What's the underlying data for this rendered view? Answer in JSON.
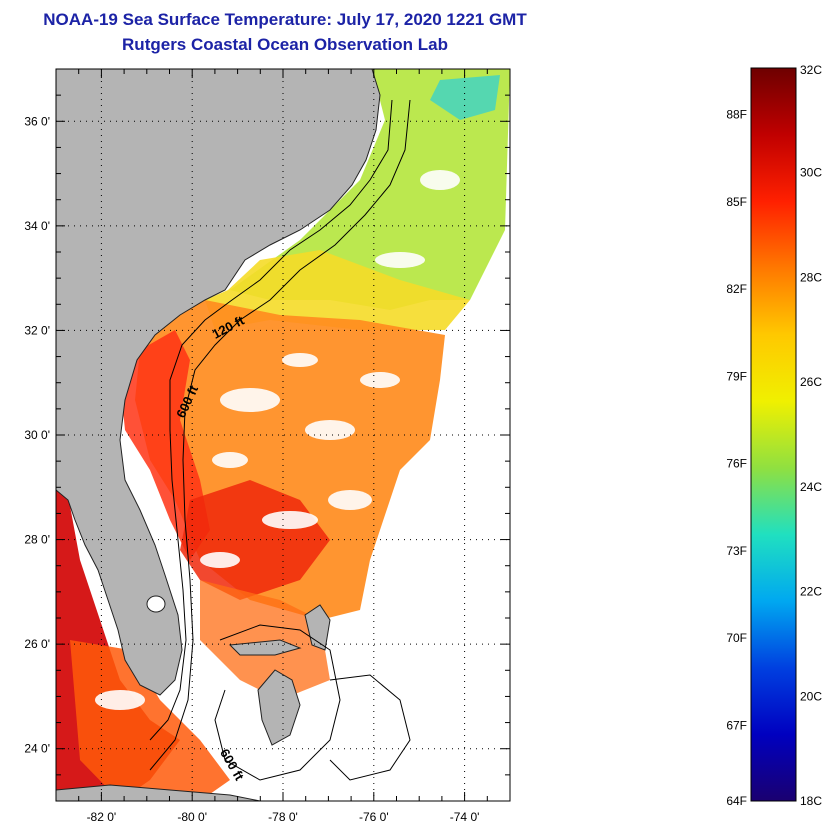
{
  "header": {
    "title": "NOAA-19 Sea Surface Temperature:  July 17, 2020 1221 GMT",
    "subtitle": "Rutgers Coastal Ocean Observation Lab"
  },
  "map": {
    "lat_range": [
      23.0,
      37.0
    ],
    "lon_range": [
      -83.0,
      -73.0
    ],
    "lat_ticks": [
      {
        "value": 24,
        "label": "24 0'"
      },
      {
        "value": 26,
        "label": "26 0'"
      },
      {
        "value": 28,
        "label": "28 0'"
      },
      {
        "value": 30,
        "label": "30 0'"
      },
      {
        "value": 32,
        "label": "32 0'"
      },
      {
        "value": 34,
        "label": "34 0'"
      },
      {
        "value": 36,
        "label": "36 0'"
      }
    ],
    "lon_ticks": [
      {
        "value": -82,
        "label": "-82 0'"
      },
      {
        "value": -80,
        "label": "-80 0'"
      },
      {
        "value": -78,
        "label": "-78 0'"
      },
      {
        "value": -76,
        "label": "-76 0'"
      },
      {
        "value": -74,
        "label": "-74 0'"
      }
    ],
    "isobath_labels": [
      "120 ft",
      "600 ft",
      "600 ft"
    ],
    "land_color": "#b4b4b4",
    "grid": "dotted"
  },
  "colorbar": {
    "celsius_range": [
      18,
      32
    ],
    "celsius_labels": [
      {
        "value": 32,
        "label": "32C"
      },
      {
        "value": 30,
        "label": "30C"
      },
      {
        "value": 28,
        "label": "28C"
      },
      {
        "value": 26,
        "label": "26C"
      },
      {
        "value": 24,
        "label": "24C"
      },
      {
        "value": 22,
        "label": "22C"
      },
      {
        "value": 20,
        "label": "20C"
      },
      {
        "value": 18,
        "label": "18C"
      }
    ],
    "fahrenheit_labels": [
      {
        "value": 88,
        "label": "88F"
      },
      {
        "value": 85,
        "label": "85F"
      },
      {
        "value": 82,
        "label": "82F"
      },
      {
        "value": 79,
        "label": "79F"
      },
      {
        "value": 76,
        "label": "76F"
      },
      {
        "value": 73,
        "label": "73F"
      },
      {
        "value": 70,
        "label": "70F"
      },
      {
        "value": 67,
        "label": "67F"
      },
      {
        "value": 64,
        "label": "64F"
      }
    ],
    "colors": [
      "#6e0000",
      "#c00000",
      "#ff2000",
      "#ff7800",
      "#ffc800",
      "#f0f000",
      "#90e040",
      "#20e0c0",
      "#00a8f0",
      "#0040e0",
      "#0000c0",
      "#1a0070"
    ]
  }
}
